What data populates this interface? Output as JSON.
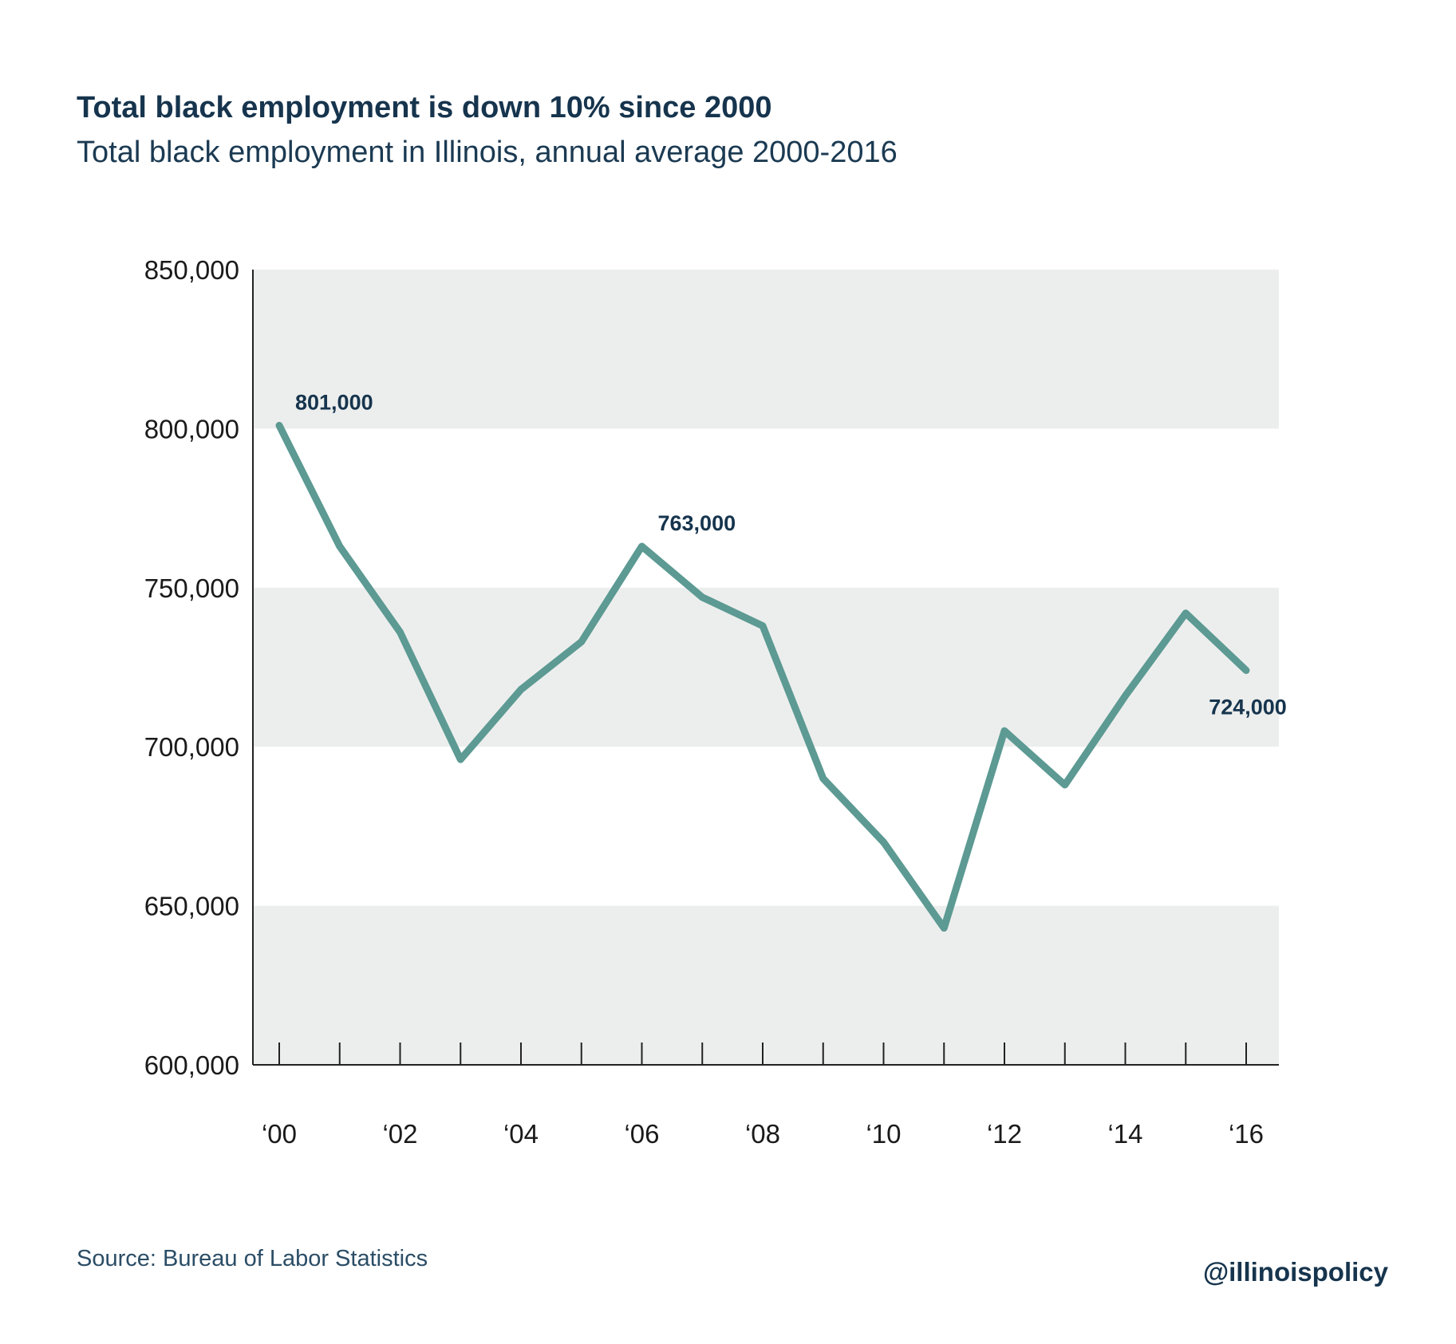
{
  "header": {
    "title": "Total black employment is down 10% since 2000",
    "subtitle": "Total black employment in Illinois, annual average 2000-2016"
  },
  "footer": {
    "source": "Source: Bureau of Labor Statistics",
    "handle": "@illinoispolicy"
  },
  "colors": {
    "line": "#5c9a93",
    "band": "#eceeed",
    "text": "#16344d",
    "axis": "#222222"
  },
  "chart_data": {
    "type": "line",
    "title": "Total black employment is down 10% since 2000",
    "subtitle": "Total black employment in Illinois, annual average 2000-2016",
    "xlabel": "",
    "ylabel": "",
    "x": [
      2000,
      2001,
      2002,
      2003,
      2004,
      2005,
      2006,
      2007,
      2008,
      2009,
      2010,
      2011,
      2012,
      2013,
      2014,
      2015,
      2016
    ],
    "ylim": [
      600000,
      850000
    ],
    "yticks": [
      600000,
      650000,
      700000,
      750000,
      800000,
      850000
    ],
    "ytick_labels": [
      "600,000",
      "650,000",
      "700,000",
      "750,000",
      "800,000",
      "850,000"
    ],
    "xtick_labels": [
      {
        "x": 2000,
        "label": "‘00"
      },
      {
        "x": 2002,
        "label": "‘02"
      },
      {
        "x": 2004,
        "label": "‘04"
      },
      {
        "x": 2006,
        "label": "‘06"
      },
      {
        "x": 2008,
        "label": "‘08"
      },
      {
        "x": 2010,
        "label": "‘10"
      },
      {
        "x": 2012,
        "label": "‘12"
      },
      {
        "x": 2014,
        "label": "‘14"
      },
      {
        "x": 2016,
        "label": "‘16"
      }
    ],
    "series": [
      {
        "values": [
          801000,
          763000,
          736000,
          696000,
          718000,
          733000,
          763000,
          747000,
          738000,
          690000,
          670000,
          643000,
          705000,
          688000,
          716000,
          742000,
          724000
        ]
      }
    ],
    "annotations": [
      {
        "x": 2000,
        "y": 801000,
        "text": "801,000",
        "placement": "above-right"
      },
      {
        "x": 2006,
        "y": 763000,
        "text": "763,000",
        "placement": "above-right"
      },
      {
        "x": 2016,
        "y": 724000,
        "text": "724,000",
        "placement": "below"
      }
    ],
    "banded_background": true,
    "grid": false,
    "legend": "none"
  }
}
